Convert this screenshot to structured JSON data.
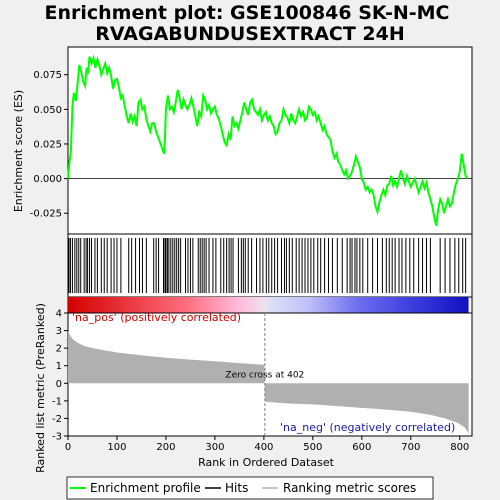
{
  "chart_data": [
    {
      "type": "line",
      "title_line1": "Enrichment plot: GSE100846 SK-N-MC",
      "title_line2": "RVAGABUNDUSEXTRACT 24H",
      "ylabel": "Enrichment score (ES)",
      "xlim": [
        0,
        825
      ],
      "ylim": [
        -0.04,
        0.095
      ],
      "yticks": [
        "-0.025",
        "0.000",
        "0.025",
        "0.050",
        "0.075"
      ],
      "ytick_values": [
        -0.025,
        0.0,
        0.025,
        0.05,
        0.075
      ],
      "grid": false,
      "series": [
        {
          "name": "Enrichment profile",
          "color": "#00ff00",
          "points": [
            [
              0,
              0.0
            ],
            [
              3,
              0.012
            ],
            [
              6,
              0.02
            ],
            [
              9,
              0.052
            ],
            [
              12,
              0.062
            ],
            [
              16,
              0.056
            ],
            [
              20,
              0.07
            ],
            [
              23,
              0.082
            ],
            [
              27,
              0.077
            ],
            [
              31,
              0.07
            ],
            [
              35,
              0.067
            ],
            [
              38,
              0.08
            ],
            [
              41,
              0.076
            ],
            [
              44,
              0.088
            ],
            [
              48,
              0.083
            ],
            [
              52,
              0.087
            ],
            [
              56,
              0.08
            ],
            [
              60,
              0.086
            ],
            [
              64,
              0.082
            ],
            [
              68,
              0.075
            ],
            [
              72,
              0.079
            ],
            [
              76,
              0.083
            ],
            [
              80,
              0.076
            ],
            [
              84,
              0.08
            ],
            [
              88,
              0.074
            ],
            [
              92,
              0.065
            ],
            [
              96,
              0.071
            ],
            [
              100,
              0.072
            ],
            [
              104,
              0.066
            ],
            [
              108,
              0.058
            ],
            [
              112,
              0.06
            ],
            [
              116,
              0.052
            ],
            [
              120,
              0.045
            ],
            [
              124,
              0.04
            ],
            [
              128,
              0.047
            ],
            [
              132,
              0.041
            ],
            [
              136,
              0.045
            ],
            [
              140,
              0.038
            ],
            [
              144,
              0.055
            ],
            [
              148,
              0.057
            ],
            [
              152,
              0.05
            ],
            [
              156,
              0.052
            ],
            [
              160,
              0.043
            ],
            [
              164,
              0.038
            ],
            [
              168,
              0.034
            ],
            [
              172,
              0.04
            ],
            [
              176,
              0.04
            ],
            [
              180,
              0.034
            ],
            [
              184,
              0.03
            ],
            [
              188,
              0.026
            ],
            [
              192,
              0.022
            ],
            [
              196,
              0.018
            ],
            [
              198,
              0.03
            ],
            [
              200,
              0.05
            ],
            [
              204,
              0.06
            ],
            [
              208,
              0.05
            ],
            [
              212,
              0.052
            ],
            [
              216,
              0.048
            ],
            [
              220,
              0.055
            ],
            [
              224,
              0.064
            ],
            [
              228,
              0.058
            ],
            [
              232,
              0.05
            ],
            [
              236,
              0.057
            ],
            [
              240,
              0.053
            ],
            [
              244,
              0.05
            ],
            [
              248,
              0.053
            ],
            [
              252,
              0.058
            ],
            [
              256,
              0.052
            ],
            [
              260,
              0.045
            ],
            [
              264,
              0.038
            ],
            [
              268,
              0.048
            ],
            [
              272,
              0.045
            ],
            [
              276,
              0.06
            ],
            [
              280,
              0.057
            ],
            [
              284,
              0.05
            ],
            [
              288,
              0.053
            ],
            [
              292,
              0.047
            ],
            [
              296,
              0.05
            ],
            [
              300,
              0.052
            ],
            [
              304,
              0.046
            ],
            [
              308,
              0.043
            ],
            [
              312,
              0.038
            ],
            [
              316,
              0.032
            ],
            [
              320,
              0.026
            ],
            [
              324,
              0.024
            ],
            [
              328,
              0.032
            ],
            [
              332,
              0.028
            ],
            [
              336,
              0.045
            ],
            [
              340,
              0.038
            ],
            [
              344,
              0.04
            ],
            [
              348,
              0.036
            ],
            [
              352,
              0.042
            ],
            [
              356,
              0.048
            ],
            [
              360,
              0.055
            ],
            [
              364,
              0.05
            ],
            [
              368,
              0.046
            ],
            [
              372,
              0.055
            ],
            [
              376,
              0.057
            ],
            [
              380,
              0.05
            ],
            [
              384,
              0.048
            ],
            [
              388,
              0.046
            ],
            [
              392,
              0.05
            ],
            [
              396,
              0.042
            ],
            [
              400,
              0.046
            ],
            [
              404,
              0.048
            ],
            [
              408,
              0.042
            ],
            [
              412,
              0.045
            ],
            [
              416,
              0.04
            ],
            [
              420,
              0.038
            ],
            [
              424,
              0.032
            ],
            [
              428,
              0.034
            ],
            [
              432,
              0.04
            ],
            [
              436,
              0.042
            ],
            [
              440,
              0.05
            ],
            [
              444,
              0.046
            ],
            [
              448,
              0.044
            ],
            [
              452,
              0.04
            ],
            [
              456,
              0.047
            ],
            [
              460,
              0.042
            ],
            [
              464,
              0.04
            ],
            [
              468,
              0.045
            ],
            [
              472,
              0.05
            ],
            [
              476,
              0.045
            ],
            [
              480,
              0.048
            ],
            [
              484,
              0.042
            ],
            [
              488,
              0.044
            ],
            [
              492,
              0.052
            ],
            [
              496,
              0.05
            ],
            [
              500,
              0.046
            ],
            [
              504,
              0.048
            ],
            [
              508,
              0.042
            ],
            [
              512,
              0.045
            ],
            [
              516,
              0.04
            ],
            [
              520,
              0.035
            ],
            [
              524,
              0.038
            ],
            [
              528,
              0.032
            ],
            [
              532,
              0.03
            ],
            [
              536,
              0.028
            ],
            [
              540,
              0.02
            ],
            [
              544,
              0.015
            ],
            [
              548,
              0.018
            ],
            [
              552,
              0.012
            ],
            [
              556,
              0.01
            ],
            [
              560,
              0.006
            ],
            [
              564,
              0.003
            ],
            [
              568,
              0.006
            ],
            [
              572,
              0.0
            ],
            [
              576,
              0.002
            ],
            [
              580,
              0.005
            ],
            [
              584,
              0.01
            ],
            [
              588,
              0.016
            ],
            [
              592,
              0.012
            ],
            [
              596,
              0.008
            ],
            [
              600,
              0.0
            ],
            [
              604,
              -0.003
            ],
            [
              608,
              -0.008
            ],
            [
              612,
              -0.006
            ],
            [
              616,
              -0.01
            ],
            [
              620,
              -0.008
            ],
            [
              624,
              -0.012
            ],
            [
              628,
              -0.02
            ],
            [
              632,
              -0.024
            ],
            [
              636,
              -0.017
            ],
            [
              640,
              -0.012
            ],
            [
              644,
              -0.008
            ],
            [
              648,
              -0.012
            ],
            [
              652,
              -0.005
            ],
            [
              656,
              -0.004
            ],
            [
              660,
              0.002
            ],
            [
              664,
              -0.005
            ],
            [
              668,
              -0.002
            ],
            [
              672,
              -0.006
            ],
            [
              676,
              0.0
            ],
            [
              680,
              0.006
            ],
            [
              684,
              0.0
            ],
            [
              688,
              -0.004
            ],
            [
              692,
              0.002
            ],
            [
              696,
              -0.002
            ],
            [
              700,
              -0.006
            ],
            [
              704,
              -0.003
            ],
            [
              708,
              0.0
            ],
            [
              712,
              -0.005
            ],
            [
              716,
              -0.01
            ],
            [
              720,
              -0.006
            ],
            [
              724,
              -0.002
            ],
            [
              728,
              -0.007
            ],
            [
              732,
              -0.003
            ],
            [
              736,
              -0.01
            ],
            [
              740,
              -0.015
            ],
            [
              744,
              -0.02
            ],
            [
              748,
              -0.028
            ],
            [
              752,
              -0.034
            ],
            [
              756,
              -0.022
            ],
            [
              760,
              -0.015
            ],
            [
              764,
              -0.018
            ],
            [
              768,
              -0.025
            ],
            [
              772,
              -0.02
            ],
            [
              776,
              -0.015
            ],
            [
              780,
              -0.02
            ],
            [
              784,
              -0.018
            ],
            [
              788,
              -0.01
            ],
            [
              792,
              -0.004
            ],
            [
              796,
              0.0
            ],
            [
              800,
              0.005
            ],
            [
              804,
              0.018
            ],
            [
              808,
              0.01
            ],
            [
              812,
              0.002
            ],
            [
              816,
              0.0
            ]
          ]
        }
      ]
    },
    {
      "type": "hits",
      "name": "Hits",
      "color": "#000000",
      "hit_ranks": [
        2,
        5,
        9,
        14,
        18,
        22,
        26,
        33,
        37,
        40,
        44,
        48,
        55,
        60,
        68,
        74,
        80,
        88,
        94,
        100,
        108,
        124,
        130,
        138,
        146,
        152,
        160,
        175,
        180,
        185,
        195,
        198,
        200,
        203,
        206,
        210,
        214,
        218,
        222,
        226,
        230,
        240,
        245,
        250,
        255,
        266,
        270,
        274,
        278,
        282,
        288,
        296,
        302,
        312,
        318,
        324,
        329,
        333,
        337,
        348,
        354,
        358,
        362,
        368,
        375,
        385,
        392,
        398,
        405,
        410,
        416,
        422,
        428,
        436,
        442,
        446,
        452,
        458,
        466,
        472,
        478,
        484,
        490,
        496,
        502,
        510,
        516,
        524,
        532,
        540,
        550,
        560,
        570,
        576,
        580,
        586,
        590,
        596,
        602,
        612,
        622,
        632,
        642,
        650,
        656,
        662,
        668,
        676,
        682,
        690,
        698,
        706,
        716,
        724,
        732,
        740,
        760,
        770,
        780,
        790,
        798,
        806,
        812
      ]
    },
    {
      "type": "area",
      "ylabel": "Ranked list metric (PreRanked)",
      "xlabel": "Rank in Ordered Dataset",
      "xlim": [
        0,
        825
      ],
      "ylim": [
        -3,
        4
      ],
      "yticks": [
        "-3",
        "-2",
        "-1",
        "0",
        "1",
        "2",
        "3",
        "4"
      ],
      "ytick_values": [
        -3,
        -2,
        -1,
        0,
        1,
        2,
        3,
        4
      ],
      "xticks": [
        "0",
        "100",
        "200",
        "300",
        "400",
        "500",
        "600",
        "700",
        "800"
      ],
      "xtick_values": [
        0,
        100,
        200,
        300,
        400,
        500,
        600,
        700,
        800
      ],
      "zero_cross": 402,
      "zero_cross_label": "Zero cross at 402",
      "pos_label": "'na_pos' (positively correlated)",
      "neg_label": "'na_neg' (negatively correlated)",
      "series": [
        {
          "name": "Ranking metric scores",
          "color": "#b0b0b0",
          "points": [
            [
              0,
              2.95
            ],
            [
              5,
              2.7
            ],
            [
              10,
              2.5
            ],
            [
              20,
              2.3
            ],
            [
              35,
              2.1
            ],
            [
              60,
              1.95
            ],
            [
              100,
              1.75
            ],
            [
              150,
              1.6
            ],
            [
              200,
              1.45
            ],
            [
              250,
              1.35
            ],
            [
              300,
              1.25
            ],
            [
              350,
              1.15
            ],
            [
              401,
              1.05
            ],
            [
              402,
              -1.05
            ],
            [
              450,
              -1.15
            ],
            [
              500,
              -1.2
            ],
            [
              550,
              -1.3
            ],
            [
              600,
              -1.4
            ],
            [
              650,
              -1.5
            ],
            [
              700,
              -1.62
            ],
            [
              740,
              -1.8
            ],
            [
              770,
              -2.0
            ],
            [
              795,
              -2.25
            ],
            [
              810,
              -2.5
            ],
            [
              818,
              -2.85
            ]
          ]
        }
      ]
    }
  ],
  "legend": {
    "items": [
      {
        "label": "Enrichment profile",
        "color": "#00ff00"
      },
      {
        "label": "Hits",
        "color": "#000000"
      },
      {
        "label": "Ranking metric scores",
        "color": "#b0b0b0"
      }
    ]
  }
}
